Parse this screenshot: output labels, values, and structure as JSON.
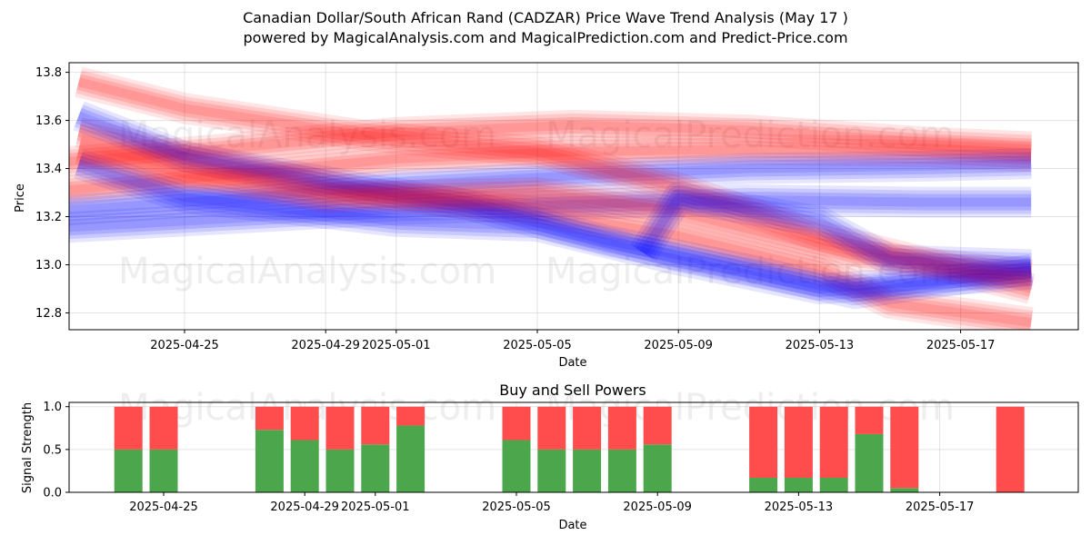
{
  "title_line1": "Canadian Dollar/South African Rand (CADZAR) Price Wave Trend Analysis (May 17 )",
  "title_line2": "powered by MagicalAnalysis.com and MagicalPrediction.com and Predict-Price.com",
  "watermarks": [
    "MagicalAnalysis.com",
    "MagicalPrediction.com"
  ],
  "chart_data": [
    {
      "type": "area",
      "title": "",
      "xlabel": "Date",
      "ylabel": "Price",
      "x_ticks": [
        "2025-04-25",
        "2025-04-29",
        "2025-05-01",
        "2025-05-05",
        "2025-05-09",
        "2025-05-13",
        "2025-05-17"
      ],
      "y_ticks": [
        12.8,
        13.0,
        13.2,
        13.4,
        13.6,
        13.8
      ],
      "xlim": [
        "2025-04-21",
        "2025-05-20"
      ],
      "ylim": [
        12.73,
        13.84
      ],
      "grid": true,
      "colors": {
        "up": "#ff0000",
        "down": "#0000ff"
      },
      "series": [
        {
          "color": "red",
          "points": [
            [
              "2025-04-21",
              13.42
            ],
            [
              "2025-04-26",
              13.48
            ],
            [
              "2025-05-01",
              13.55
            ],
            [
              "2025-05-06",
              13.58
            ],
            [
              "2025-05-11",
              13.56
            ],
            [
              "2025-05-16",
              13.51
            ],
            [
              "2025-05-19",
              13.49
            ]
          ]
        },
        {
          "color": "red",
          "points": [
            [
              "2025-04-21",
              13.3
            ],
            [
              "2025-04-26",
              13.37
            ],
            [
              "2025-05-01",
              13.44
            ],
            [
              "2025-05-06",
              13.47
            ],
            [
              "2025-05-11",
              13.48
            ],
            [
              "2025-05-16",
              13.47
            ],
            [
              "2025-05-19",
              13.45
            ]
          ]
        },
        {
          "color": "blue",
          "points": [
            [
              "2025-04-21",
              13.22
            ],
            [
              "2025-04-26",
              13.27
            ],
            [
              "2025-05-01",
              13.33
            ],
            [
              "2025-05-06",
              13.37
            ],
            [
              "2025-05-11",
              13.4
            ],
            [
              "2025-05-16",
              13.41
            ],
            [
              "2025-05-19",
              13.42
            ]
          ]
        },
        {
          "color": "blue",
          "points": [
            [
              "2025-04-21",
              13.15
            ],
            [
              "2025-04-26",
              13.19
            ],
            [
              "2025-05-01",
              13.23
            ],
            [
              "2025-05-06",
              13.25
            ],
            [
              "2025-05-11",
              13.27
            ],
            [
              "2025-05-16",
              13.26
            ],
            [
              "2025-05-19",
              13.26
            ]
          ]
        },
        {
          "color": "red",
          "points": [
            [
              "2025-04-22",
              13.76
            ],
            [
              "2025-04-25",
              13.65
            ],
            [
              "2025-04-30",
              13.54
            ],
            [
              "2025-05-05",
              13.47
            ],
            [
              "2025-05-09",
              13.32
            ],
            [
              "2025-05-13",
              13.12
            ],
            [
              "2025-05-19",
              12.9
            ]
          ]
        },
        {
          "color": "red",
          "points": [
            [
              "2025-04-22",
              13.55
            ],
            [
              "2025-04-25",
              13.45
            ],
            [
              "2025-04-30",
              13.3
            ],
            [
              "2025-05-05",
              13.22
            ],
            [
              "2025-05-09",
              13.12
            ],
            [
              "2025-05-13",
              12.98
            ],
            [
              "2025-05-15",
              12.84
            ],
            [
              "2025-05-19",
              12.76
            ]
          ]
        },
        {
          "color": "blue",
          "points": [
            [
              "2025-04-22",
              13.62
            ],
            [
              "2025-04-25",
              13.45
            ],
            [
              "2025-04-30",
              13.32
            ],
            [
              "2025-05-03",
              13.25
            ],
            [
              "2025-05-07",
              13.1
            ],
            [
              "2025-05-11",
              12.98
            ],
            [
              "2025-05-14",
              12.88
            ],
            [
              "2025-05-19",
              12.98
            ]
          ]
        },
        {
          "color": "blue",
          "points": [
            [
              "2025-04-22",
              13.42
            ],
            [
              "2025-04-25",
              13.28
            ],
            [
              "2025-05-01",
              13.18
            ],
            [
              "2025-05-05",
              13.16
            ],
            [
              "2025-05-09",
              13.02
            ],
            [
              "2025-05-13",
              12.9
            ],
            [
              "2025-05-19",
              12.96
            ]
          ]
        },
        {
          "color": "red",
          "points": [
            [
              "2025-04-22",
              13.48
            ],
            [
              "2025-04-25",
              13.38
            ],
            [
              "2025-04-29",
              13.28
            ],
            [
              "2025-05-05",
              13.3
            ],
            [
              "2025-05-09",
              13.22
            ],
            [
              "2025-05-14",
              13.04
            ],
            [
              "2025-05-19",
              12.96
            ]
          ]
        },
        {
          "color": "blue",
          "points": [
            [
              "2025-05-08",
              13.05
            ],
            [
              "2025-05-09",
              13.28
            ],
            [
              "2025-05-13",
              13.18
            ],
            [
              "2025-05-15",
              13.02
            ],
            [
              "2025-05-19",
              13.0
            ]
          ]
        }
      ]
    },
    {
      "type": "bar",
      "title": "Buy and Sell Powers",
      "xlabel": "Date",
      "ylabel": "Signal Strength",
      "x_ticks": [
        "2025-04-25",
        "2025-04-29",
        "2025-05-01",
        "2025-05-05",
        "2025-05-09",
        "2025-05-13",
        "2025-05-17"
      ],
      "y_ticks": [
        0.0,
        0.5,
        1.0
      ],
      "ylim": [
        0,
        1.05
      ],
      "colors": {
        "buy": "#4ca64c",
        "sell": "#ff4c4c"
      },
      "categories": [
        "2025-04-24",
        "2025-04-25",
        "2025-04-28",
        "2025-04-29",
        "2025-04-30",
        "2025-05-01",
        "2025-05-02",
        "2025-05-05",
        "2025-05-06",
        "2025-05-07",
        "2025-05-08",
        "2025-05-09",
        "2025-05-12",
        "2025-05-13",
        "2025-05-14",
        "2025-05-15",
        "2025-05-16",
        "2025-05-19"
      ],
      "series": [
        {
          "name": "buy",
          "values": [
            0.5,
            0.5,
            0.73,
            0.61,
            0.5,
            0.56,
            0.78,
            0.61,
            0.5,
            0.5,
            0.5,
            0.56,
            0.17,
            0.17,
            0.17,
            0.68,
            0.05,
            0.0
          ]
        },
        {
          "name": "sell",
          "values": [
            0.5,
            0.5,
            0.27,
            0.39,
            0.5,
            0.44,
            0.22,
            0.39,
            0.5,
            0.5,
            0.5,
            0.44,
            0.83,
            0.83,
            0.83,
            0.32,
            0.95,
            1.0
          ]
        }
      ]
    }
  ]
}
